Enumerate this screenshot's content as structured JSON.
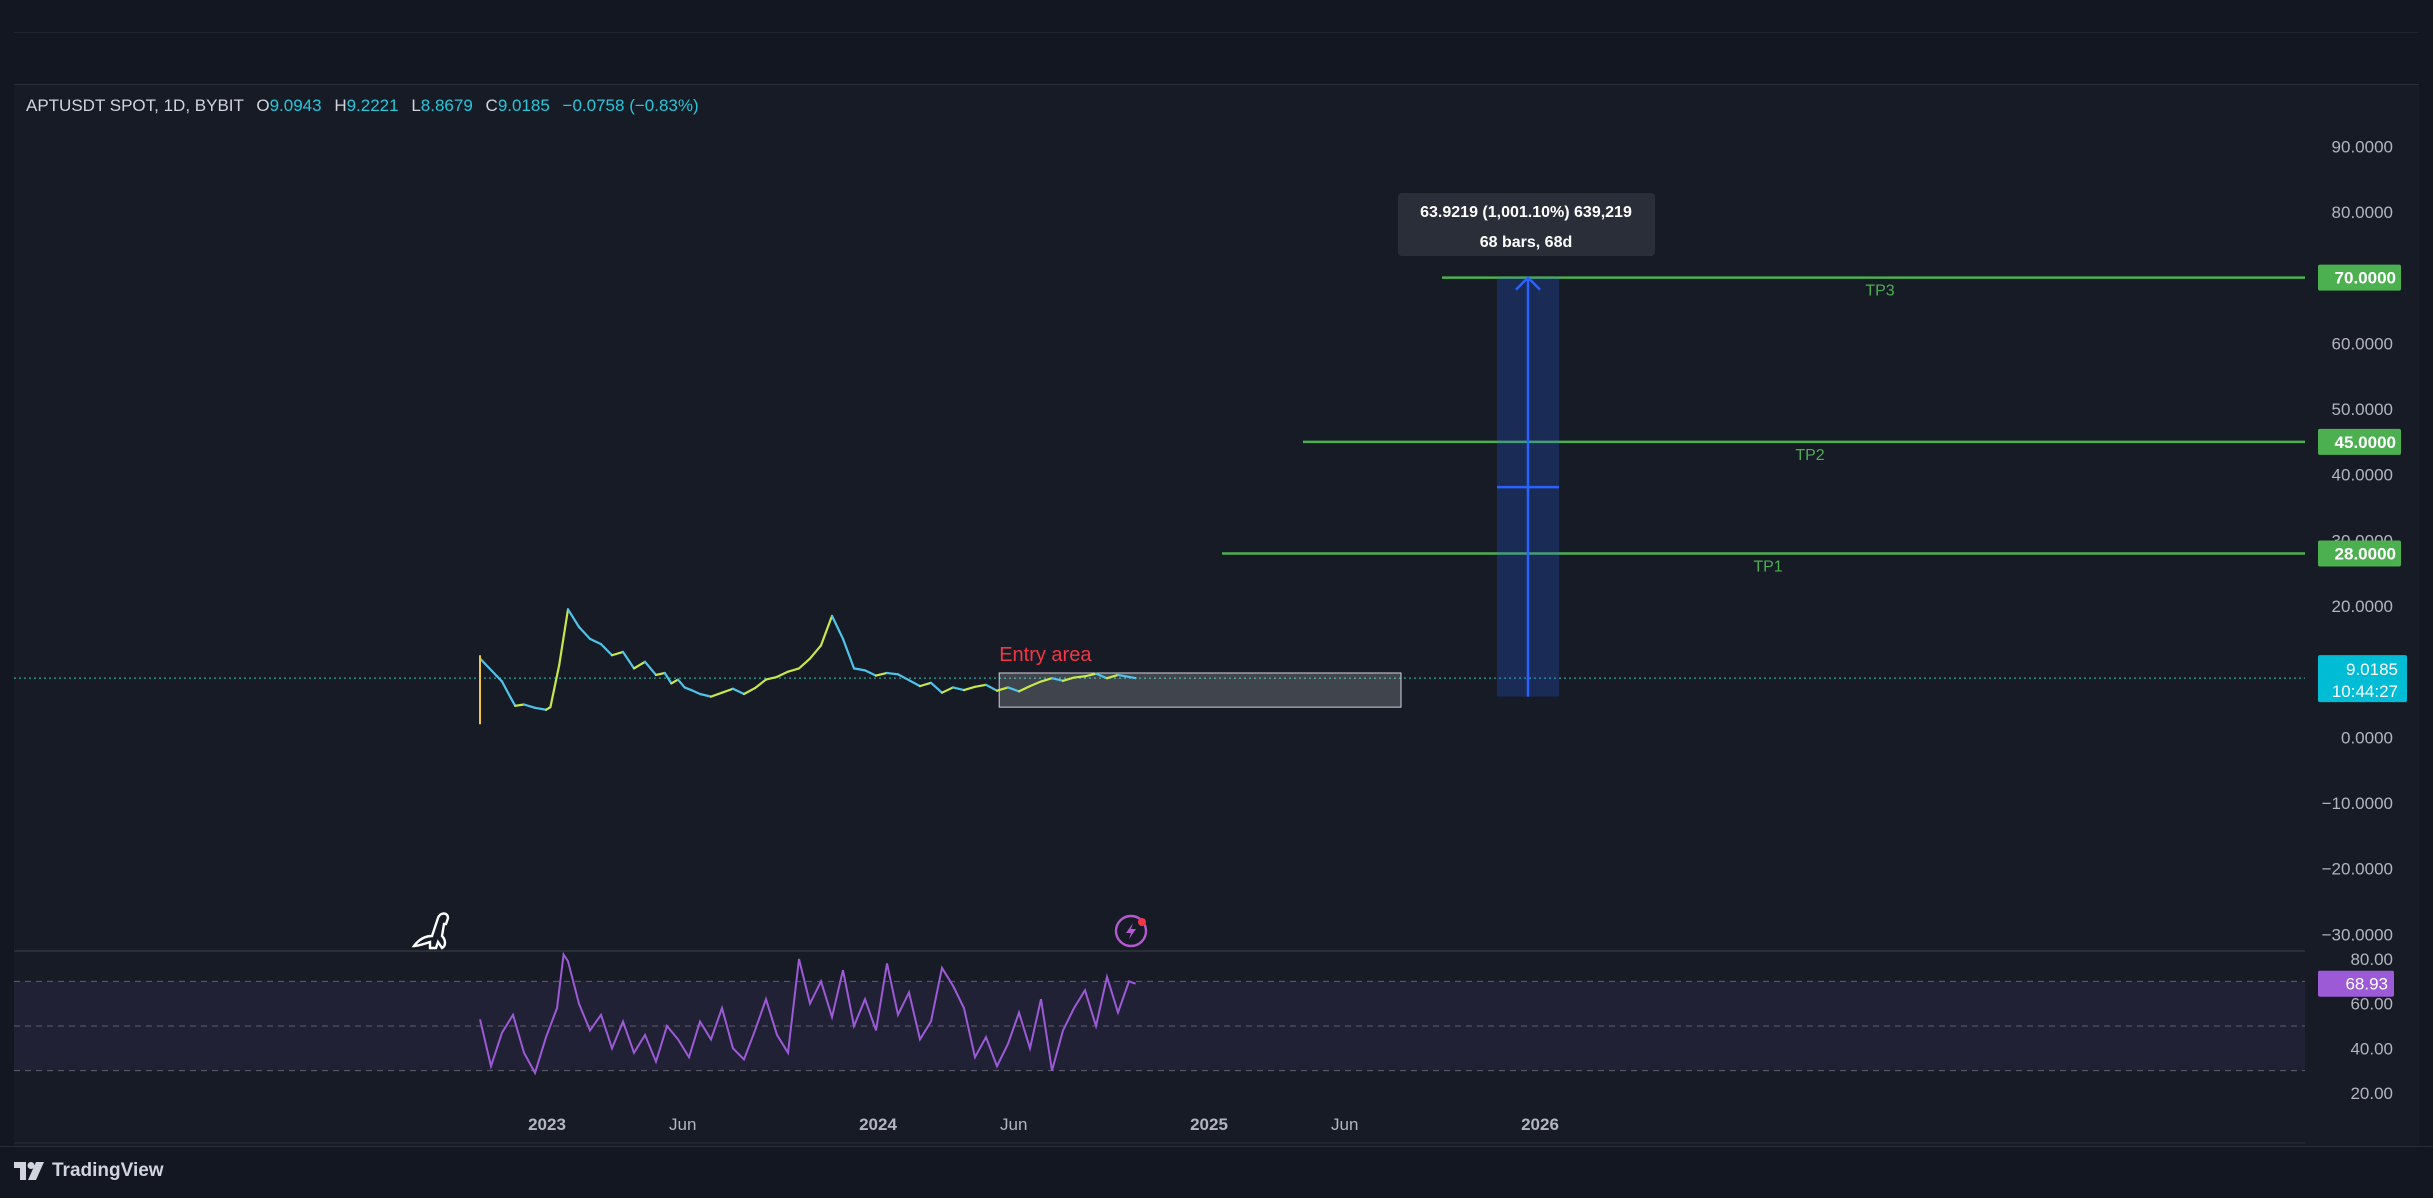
{
  "legend": {
    "symbol": "APTUSDT SPOT, 1D, BYBIT",
    "o_label": "O",
    "o_value": "9.0943",
    "h_label": "H",
    "h_value": "9.2221",
    "l_label": "L",
    "l_value": "8.8679",
    "c_label": "C",
    "c_value": "9.0185",
    "change": "−0.0758 (−0.83%)"
  },
  "brand": {
    "name": "TradingView"
  },
  "colors": {
    "background": "#171b26",
    "candle_up": "#c6e84a",
    "candle_down": "#4fc3e8",
    "target_line": "#4caf50",
    "measure_blue": "#2962ff",
    "rsi": "#9c5ad6",
    "entry_text": "#f23645",
    "price_badge": "#00bcd4"
  },
  "icons": [
    "dinosaur-icon",
    "lightning-event-icon",
    "tradingview-logo-icon"
  ],
  "chart_data": [
    {
      "type": "line",
      "title": "APTUSDT SPOT, 1D, BYBIT",
      "x_ticks": [
        "2023",
        "Jun",
        "2024",
        "Jun",
        "2025",
        "Jun",
        "2026"
      ],
      "y_ticks": [
        "90.0000",
        "80.0000",
        "60.0000",
        "50.0000",
        "40.0000",
        "30.0000",
        "20.0000",
        "0.0000",
        "−10.0000",
        "−20.0000",
        "−30.0000"
      ],
      "ylim": [
        -32,
        95
      ],
      "series": [
        {
          "x": [
            0.0,
            0.1,
            0.14,
            0.16,
            0.2,
            0.25,
            0.3,
            0.32,
            0.36,
            0.4,
            0.45,
            0.5,
            0.55,
            0.6,
            0.65,
            0.7,
            0.75,
            0.8,
            0.84,
            0.87,
            0.9,
            0.93,
            0.96,
            1.0,
            1.05,
            1.1,
            1.15,
            1.2,
            1.25,
            1.3,
            1.35,
            1.4,
            1.45,
            1.5,
            1.55,
            1.6,
            1.65,
            1.7,
            1.75,
            1.8,
            1.85,
            1.9,
            1.95,
            2.0,
            2.05,
            2.1,
            2.15,
            2.2,
            2.25,
            2.3,
            2.35,
            2.4,
            2.45,
            2.5,
            2.55,
            2.6,
            2.65,
            2.7,
            2.75,
            2.8,
            2.85,
            2.9,
            2.95,
            2.98
          ],
          "y": [
            12.0,
            8.5,
            6.0,
            4.8,
            5.0,
            4.5,
            4.2,
            4.6,
            11.0,
            19.5,
            16.8,
            15.0,
            14.2,
            12.5,
            13.0,
            10.5,
            11.5,
            9.5,
            9.8,
            8.2,
            8.8,
            7.6,
            7.2,
            6.6,
            6.2,
            6.8,
            7.4,
            6.6,
            7.5,
            8.8,
            9.2,
            10.0,
            10.5,
            12.0,
            14.0,
            18.5,
            15.0,
            10.5,
            10.2,
            9.4,
            9.8,
            9.6,
            8.7,
            7.8,
            8.3,
            6.8,
            7.6,
            7.2,
            7.7,
            8.0,
            7.1,
            7.6,
            7.0,
            7.8,
            8.5,
            9.0,
            8.6,
            9.1,
            9.3,
            9.7,
            9.0,
            9.5,
            9.2,
            9.0185
          ]
        }
      ],
      "price_lines": [
        {
          "label": "TP3",
          "value": 70.0,
          "tag": "70.0000"
        },
        {
          "label": "TP2",
          "value": 45.0,
          "tag": "45.0000"
        },
        {
          "label": "TP1",
          "value": 28.0,
          "tag": "28.0000"
        }
      ],
      "current_price": {
        "value": 9.0185,
        "tag": "9.0185",
        "countdown": "10:44:27"
      },
      "entry_area": {
        "label": "Entry area",
        "low": 4.6,
        "high": 9.8
      },
      "measure": {
        "line1": "63.9219 (1,001.10%) 639,219",
        "line2": "68 bars, 68d",
        "from": 6.2,
        "to": 70.0
      }
    },
    {
      "type": "line",
      "title": "",
      "y_ticks": [
        "80.00",
        "60.00",
        "40.00",
        "20.00"
      ],
      "ylim": [
        15,
        84
      ],
      "bands": [
        70,
        50,
        30
      ],
      "series": [
        {
          "x": [
            0.0,
            0.05,
            0.1,
            0.15,
            0.2,
            0.25,
            0.3,
            0.35,
            0.38,
            0.4,
            0.45,
            0.5,
            0.55,
            0.6,
            0.65,
            0.7,
            0.75,
            0.8,
            0.85,
            0.9,
            0.95,
            1.0,
            1.05,
            1.1,
            1.15,
            1.2,
            1.25,
            1.3,
            1.35,
            1.4,
            1.45,
            1.5,
            1.55,
            1.6,
            1.65,
            1.7,
            1.75,
            1.8,
            1.85,
            1.9,
            1.95,
            2.0,
            2.05,
            2.1,
            2.15,
            2.2,
            2.25,
            2.3,
            2.35,
            2.4,
            2.45,
            2.5,
            2.55,
            2.6,
            2.65,
            2.7,
            2.75,
            2.8,
            2.85,
            2.9,
            2.95,
            2.98
          ],
          "y": [
            53,
            32,
            47,
            55,
            38,
            29,
            45,
            58,
            82,
            79,
            60,
            48,
            55,
            40,
            52,
            38,
            46,
            34,
            50,
            44,
            36,
            52,
            44,
            58,
            40,
            35,
            48,
            62,
            46,
            38,
            80,
            60,
            70,
            54,
            75,
            50,
            62,
            48,
            78,
            55,
            65,
            44,
            52,
            76,
            68,
            58,
            36,
            45,
            32,
            42,
            56,
            40,
            62,
            30,
            48,
            58,
            66,
            50,
            72,
            56,
            70,
            68.93
          ]
        }
      ],
      "current_value": {
        "value": 68.93,
        "tag": "68.93"
      }
    }
  ]
}
